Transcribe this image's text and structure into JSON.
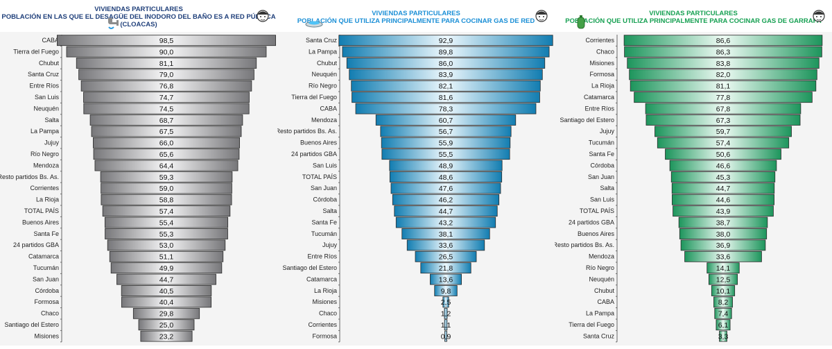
{
  "chart_data": [
    {
      "type": "bar",
      "orientation": "horizontal",
      "style": "centered-funnel",
      "title": "VIVIENDAS PARTICULARES",
      "subtitle": "POBLACIÓN EN LAS QUE EL DESAGÜE DEL INODORO DEL BAÑO ES A RED PÚBLICA",
      "subtitle2": "(CLOACAS)",
      "color": "#9e9ea3",
      "title_color": "#1f3f7a",
      "icon": "toilet-drain-icon",
      "categories": [
        "CABA",
        "Tierra del Fuego",
        "Chubut",
        "Santa Cruz",
        "Entre Ríos",
        "San Luis",
        "Neuquén",
        "Salta",
        "La Pampa",
        "Jujuy",
        "Río Negro",
        "Mendoza",
        "Resto partidos Bs. As.",
        "Corrientes",
        "La Rioja",
        "TOTAL PAÍS",
        "Buenos Aires",
        "Santa Fe",
        "24 partidos GBA",
        "Catamarca",
        "Tucumán",
        "San Juan",
        "Córdoba",
        "Formosa",
        "Chaco",
        "Santiago del Estero",
        "Misiones"
      ],
      "values": [
        98.5,
        90.0,
        81.1,
        79.0,
        76.8,
        74.7,
        74.5,
        68.7,
        67.5,
        66.0,
        65.6,
        64.4,
        59.3,
        59.0,
        58.8,
        57.4,
        55.4,
        55.3,
        53.0,
        51.1,
        49.9,
        44.7,
        40.5,
        40.4,
        29.8,
        25.0,
        23.2
      ],
      "labels": [
        "98,5",
        "90,0",
        "81,1",
        "79,0",
        "76,8",
        "74,7",
        "74,5",
        "68,7",
        "67,5",
        "66,0",
        "65,6",
        "64,4",
        "59,3",
        "59,0",
        "58,8",
        "57,4",
        "55,4",
        "55,3",
        "53,0",
        "51,1",
        "49,9",
        "44,7",
        "40,5",
        "40,4",
        "29,8",
        "25,0",
        "23,2"
      ],
      "xlim": [
        0,
        100
      ],
      "grid": false,
      "legend": "none"
    },
    {
      "type": "bar",
      "orientation": "horizontal",
      "style": "centered-funnel",
      "title": "VIVIENDAS PARTICULARES",
      "subtitle": "POBLACIÓN QUE UTILIZA PRINCIPALMENTE PARA COCINAR GAS DE RED",
      "subtitle2": "",
      "color": "#18a7ec",
      "title_color": "#1b8fd6",
      "icon": "gas-burner-icon",
      "categories": [
        "Santa Cruz",
        "La Pampa",
        "Chubut",
        "Neuquén",
        "Río Negro",
        "Tierra del Fuego",
        "CABA",
        "Mendoza",
        "Resto partidos Bs. As.",
        "Buenos Aires",
        "24 partidos GBA",
        "San Luis",
        "TOTAL PAÍS",
        "San Juan",
        "Córdoba",
        "Salta",
        "Santa Fe",
        "Tucumán",
        "Jujuy",
        "Entre Ríos",
        "Santiago del Estero",
        "Catamarca",
        "La Rioja",
        "Misiones",
        "Chaco",
        "Corrientes",
        "Formosa"
      ],
      "values": [
        92.9,
        89.8,
        86.0,
        83.9,
        82.1,
        81.6,
        78.3,
        60.7,
        56.7,
        55.9,
        55.5,
        48.9,
        48.6,
        47.6,
        46.2,
        44.7,
        43.2,
        38.1,
        33.6,
        26.5,
        21.8,
        13.6,
        9.8,
        2.5,
        1.2,
        1.1,
        0.9
      ],
      "labels": [
        "92,9",
        "89,8",
        "86,0",
        "83,9",
        "82,1",
        "81,6",
        "78,3",
        "60,7",
        "56,7",
        "55,9",
        "55,5",
        "48,9",
        "48,6",
        "47,6",
        "46,2",
        "44,7",
        "43,2",
        "38,1",
        "33,6",
        "26,5",
        "21,8",
        "13,6",
        "9,8",
        "2,5",
        "1,2",
        "1,1",
        "0,9"
      ],
      "xlim": [
        0,
        100
      ],
      "grid": false,
      "legend": "none"
    },
    {
      "type": "bar",
      "orientation": "horizontal",
      "style": "centered-funnel",
      "title": "VIVIENDAS PARTICULARES",
      "subtitle": "POBLACIÓN QUE UTILIZA PRINCIPALMENTE PARA COCINAR GAS DE GARRAFA",
      "subtitle2": "",
      "color": "#27c77a",
      "title_color": "#16a052",
      "icon": "gas-cylinder-icon",
      "categories": [
        "Corrientes",
        "Chaco",
        "Misiones",
        "Formosa",
        "La Rioja",
        "Catamarca",
        "Entre Ríos",
        "Santiago del Estero",
        "Jujuy",
        "Tucumán",
        "Santa Fe",
        "Córdoba",
        "San Juan",
        "Salta",
        "San Luis",
        "TOTAL PAÍS",
        "24 partidos GBA",
        "Buenos Aires",
        "Resto partidos Bs. As.",
        "Mendoza",
        "Río Negro",
        "Neuquén",
        "Chubut",
        "CABA",
        "La Pampa",
        "Tierra del Fuego",
        "Santa Cruz"
      ],
      "values": [
        86.6,
        86.3,
        83.8,
        82.0,
        81.1,
        77.8,
        67.8,
        67.3,
        59.7,
        57.4,
        50.6,
        46.6,
        45.3,
        44.7,
        44.6,
        43.9,
        38.7,
        38.0,
        36.9,
        33.6,
        14.1,
        12.5,
        10.1,
        8.2,
        7.4,
        6.1,
        3.3
      ],
      "labels": [
        "86,6",
        "86,3",
        "83,8",
        "82,0",
        "81,1",
        "77,8",
        "67,8",
        "67,3",
        "59,7",
        "57,4",
        "50,6",
        "46,6",
        "45,3",
        "44,7",
        "44,6",
        "43,9",
        "38,7",
        "38,0",
        "36,9",
        "33,6",
        "14,1",
        "12,5",
        "10,1",
        "8,2",
        "7,4",
        "6,1",
        "3,3"
      ],
      "xlim": [
        0,
        100
      ],
      "grid": false,
      "legend": "none"
    }
  ]
}
